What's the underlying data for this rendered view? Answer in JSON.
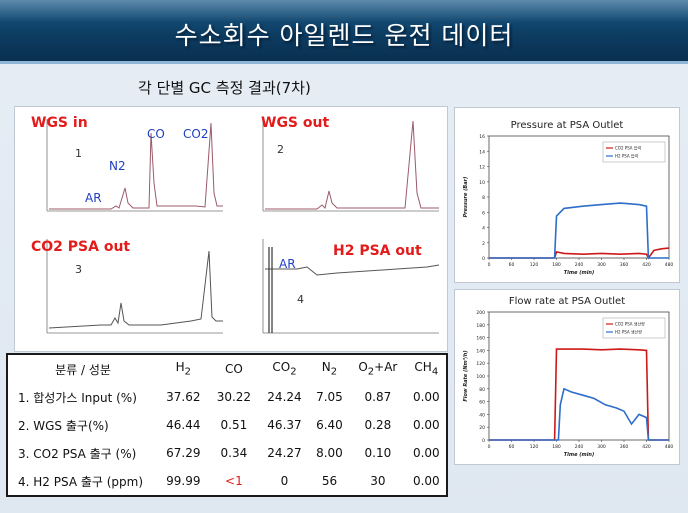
{
  "title": "수소회수 아일렌드 운전 데이터",
  "subtitle": "각 단별 GC 측정 결과(7차)",
  "gc_panels": [
    {
      "label": "WGS in",
      "number": "1",
      "peaks": [
        "AR",
        "N2",
        "CO",
        "CO2"
      ]
    },
    {
      "label": "WGS out",
      "number": "2",
      "peaks": []
    },
    {
      "label": "CO2 PSA out",
      "number": "3",
      "peaks": []
    },
    {
      "label": "H2 PSA out",
      "number": "4",
      "peaks": [
        "AR"
      ]
    }
  ],
  "table": {
    "headers": [
      "분류 / 성분",
      "H2",
      "CO",
      "CO2",
      "N2",
      "O2+Ar",
      "CH4"
    ],
    "rows": [
      {
        "label": "1. 합성가스 Input (%)",
        "values": [
          "37.62",
          "30.22",
          "24.24",
          "7.05",
          "0.87",
          "0.00"
        ]
      },
      {
        "label": "2. WGS 출구(%)",
        "values": [
          "46.44",
          "0.51",
          "46.37",
          "6.40",
          "0.28",
          "0.00"
        ]
      },
      {
        "label": "3. CO2 PSA 출구 (%)",
        "values": [
          "67.29",
          "0.34",
          "24.27",
          "8.00",
          "0.10",
          "0.00"
        ]
      },
      {
        "label": "4. H2 PSA 출구 (ppm)",
        "values": [
          "99.99",
          "<1",
          "0",
          "56",
          "30",
          "0.00"
        ]
      }
    ]
  },
  "chart_data": [
    {
      "type": "line",
      "title": "Pressure at PSA Outlet",
      "xlabel": "Time (min)",
      "ylabel": "Pressure (Bar)",
      "xlim": [
        0,
        480
      ],
      "ylim": [
        0,
        16
      ],
      "x_ticks": [
        "0",
        "60",
        "120",
        "180",
        "240",
        "300",
        "360",
        "420",
        "480"
      ],
      "y_ticks": [
        "0",
        "2",
        "4",
        "6",
        "8",
        "10",
        "12",
        "14",
        "16"
      ],
      "legend_position": "top-right",
      "series": [
        {
          "name": "CO2 PSA 압력",
          "color": "#cc1a1a",
          "x": [
            0,
            175,
            180,
            200,
            250,
            300,
            350,
            400,
            420,
            425,
            440,
            460,
            480
          ],
          "y": [
            0,
            0,
            0.8,
            0.6,
            0.5,
            0.6,
            0.5,
            0.6,
            0.5,
            0,
            1,
            1.2,
            1.3
          ]
        },
        {
          "name": "H2 PSA 압력",
          "color": "#2c6ec9",
          "x": [
            0,
            175,
            180,
            200,
            250,
            300,
            350,
            400,
            420,
            425,
            480
          ],
          "y": [
            0,
            0,
            5.5,
            6.5,
            6.8,
            7,
            7.2,
            7,
            6.8,
            0,
            0
          ]
        }
      ]
    },
    {
      "type": "line",
      "title": "Flow rate at PSA Outlet",
      "xlabel": "Time (min)",
      "ylabel": "Flow Rate (Nm³/h)",
      "xlim": [
        0,
        480
      ],
      "ylim": [
        0,
        200
      ],
      "x_ticks": [
        "0",
        "60",
        "120",
        "180",
        "240",
        "300",
        "360",
        "420",
        "480"
      ],
      "y_ticks": [
        "0",
        "20",
        "40",
        "60",
        "80",
        "100",
        "120",
        "140",
        "160",
        "180",
        "200"
      ],
      "legend_position": "top-right",
      "series": [
        {
          "name": "CO2 PSA 생산량",
          "color": "#cc1a1a",
          "x": [
            0,
            175,
            180,
            250,
            300,
            350,
            400,
            420,
            425,
            480
          ],
          "y": [
            0,
            0,
            142,
            142,
            141,
            142,
            141,
            140,
            0,
            0
          ]
        },
        {
          "name": "H2 PSA 생산량",
          "color": "#2c6ec9",
          "x": [
            0,
            185,
            190,
            200,
            220,
            250,
            280,
            310,
            340,
            360,
            380,
            400,
            420,
            425,
            480
          ],
          "y": [
            0,
            0,
            55,
            80,
            75,
            70,
            65,
            55,
            50,
            45,
            25,
            40,
            35,
            0,
            0
          ]
        }
      ]
    }
  ]
}
